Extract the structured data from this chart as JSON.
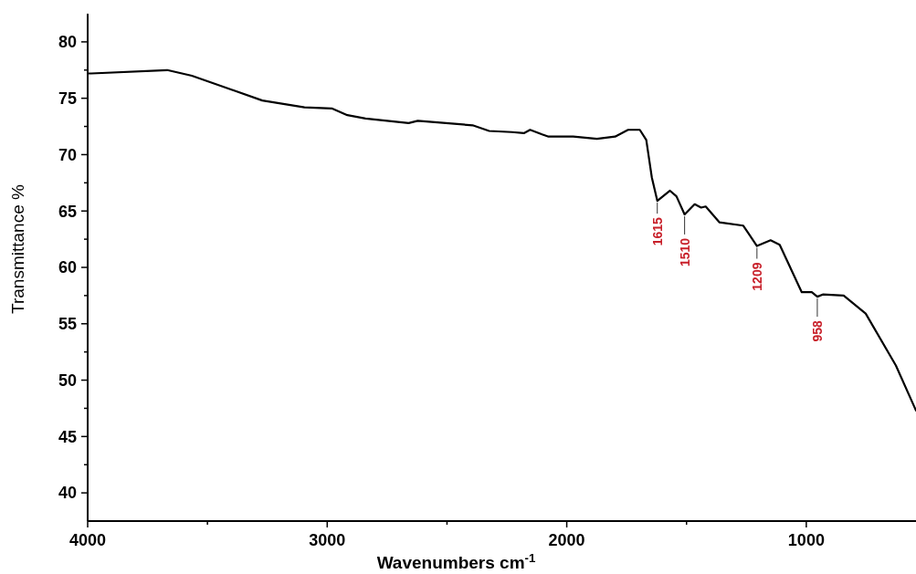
{
  "chart_data": {
    "type": "line",
    "xlabel": "Wavenumbers cm$^{-1}$",
    "ylabel": "Transmittance %",
    "xlim": [
      4000,
      542
    ],
    "ylim": [
      37.5,
      82.5
    ],
    "xticks": [
      4000,
      {
        "value": 3500,
        "label": null
      },
      3000,
      {
        "value": 2500,
        "label": null
      },
      2000,
      {
        "value": 1500,
        "label": null
      },
      1000
    ],
    "yticks": [
      40,
      {
        "value": 42.5,
        "label": null
      },
      45,
      {
        "value": 47.5,
        "label": null
      },
      50,
      {
        "value": 52.5,
        "label": null
      },
      55,
      {
        "value": 57.5,
        "label": null
      },
      60,
      {
        "value": 62.5,
        "label": null
      },
      65,
      {
        "value": 67.5,
        "label": null
      },
      70,
      {
        "value": 72.5,
        "label": null
      },
      75,
      {
        "value": 77.5,
        "label": null
      },
      80
    ],
    "grid": false,
    "marker": "none",
    "line_style": "solid",
    "series": [
      {
        "color": "#000000",
        "x": [
          4000,
          3985,
          3668,
          3565,
          3271,
          3095,
          2981,
          2916,
          2840,
          2660,
          2622,
          2393,
          2324,
          2229,
          2179,
          2153,
          2103,
          2076,
          1973,
          1874,
          1798,
          1744,
          1695,
          1668,
          1645,
          1622,
          1569,
          1542,
          1508,
          1466,
          1439,
          1420,
          1363,
          1263,
          1206,
          1149,
          1111,
          1019,
          977,
          954,
          931,
          844,
          752,
          626,
          542
        ],
        "values": [
          77.2,
          77.2,
          77.5,
          77.0,
          74.8,
          74.2,
          74.1,
          73.5,
          73.2,
          72.8,
          73.0,
          72.6,
          72.1,
          72.0,
          71.9,
          72.2,
          71.8,
          71.6,
          71.6,
          71.4,
          71.6,
          72.2,
          72.2,
          71.3,
          68.0,
          65.9,
          66.8,
          66.3,
          64.7,
          65.6,
          65.3,
          65.4,
          64.0,
          63.7,
          61.9,
          62.4,
          62.0,
          57.8,
          57.8,
          57.4,
          57.6,
          57.5,
          55.9,
          51.3,
          47.3
        ]
      }
    ],
    "annotations": [
      {
        "text": "1615",
        "x": 1622,
        "y": 65.9
      },
      {
        "text": "1510",
        "x": 1508,
        "y": 64.7
      },
      {
        "text": "1209",
        "x": 1206,
        "y": 61.9
      },
      {
        "text": "958",
        "x": 954,
        "y": 57.4
      }
    ]
  }
}
